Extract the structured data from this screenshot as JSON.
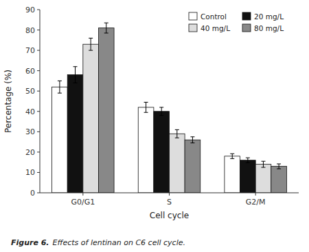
{
  "chart_data": {
    "type": "bar",
    "categories": [
      "G0/G1",
      "S",
      "G2/M"
    ],
    "series": [
      {
        "name": "Control",
        "color": "white",
        "values": [
          52,
          42,
          18
        ],
        "errors": [
          3.0,
          2.5,
          1.2
        ]
      },
      {
        "name": "20 mg/L",
        "color": "#111111",
        "values": [
          58,
          40,
          16
        ],
        "errors": [
          4.0,
          2.0,
          1.2
        ]
      },
      {
        "name": "40 mg/L",
        "color": "#dddddd",
        "values": [
          73,
          29,
          14
        ],
        "errors": [
          3.0,
          2.0,
          1.5
        ]
      },
      {
        "name": "80 mg/L",
        "color": "#888888",
        "values": [
          81,
          26,
          13
        ],
        "errors": [
          2.5,
          1.5,
          1.2
        ]
      }
    ],
    "xlabel": "Cell cycle",
    "ylabel": "Percentage (%)",
    "ylim": [
      0,
      90
    ],
    "yticks": [
      0,
      10,
      20,
      30,
      40,
      50,
      60,
      70,
      80,
      90
    ],
    "grid": false,
    "legend": "upper right",
    "annotations": [
      "Figure 6.",
      "Effects of lentinan on C6 cell cycle."
    ]
  }
}
